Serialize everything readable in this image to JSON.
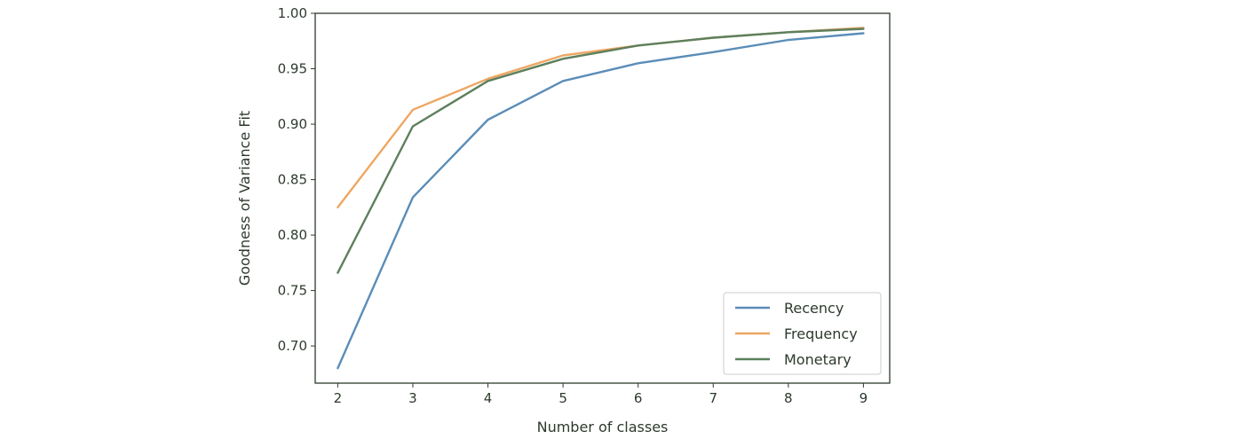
{
  "chart_data": {
    "type": "line",
    "xlabel": "Number of classes",
    "ylabel": "Goodness of Variance Fit",
    "x": [
      2,
      3,
      4,
      5,
      6,
      7,
      8,
      9
    ],
    "xlim": [
      1.7,
      9.35
    ],
    "ylim": [
      0.6665,
      1.0
    ],
    "xticks": [
      2,
      3,
      4,
      5,
      6,
      7,
      8,
      9
    ],
    "yticks": [
      0.7,
      0.75,
      0.8,
      0.85,
      0.9,
      0.95,
      1.0
    ],
    "ytick_labels": [
      "0.70",
      "0.75",
      "0.80",
      "0.85",
      "0.90",
      "0.95",
      "1.00"
    ],
    "xtick_labels": [
      "2",
      "3",
      "4",
      "5",
      "6",
      "7",
      "8",
      "9"
    ],
    "grid": false,
    "legend_placement": "lower-right",
    "series": [
      {
        "name": "Recency",
        "color": "#5b8db8",
        "values": [
          0.68,
          0.834,
          0.904,
          0.939,
          0.955,
          0.965,
          0.976,
          0.982
        ]
      },
      {
        "name": "Frequency",
        "color": "#eea763",
        "values": [
          0.825,
          0.913,
          0.941,
          0.962,
          0.971,
          0.978,
          0.983,
          0.987
        ]
      },
      {
        "name": "Monetary",
        "color": "#5d7f5d",
        "values": [
          0.766,
          0.898,
          0.939,
          0.959,
          0.971,
          0.978,
          0.983,
          0.986
        ]
      }
    ]
  }
}
